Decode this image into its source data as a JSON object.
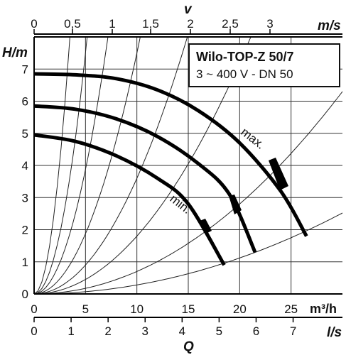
{
  "chart_data": {
    "type": "line",
    "title": "Wilo-TOP-Z 50/7",
    "subtitle": "3 ~ 400 V - DN 50",
    "x_primary": {
      "label": "Q",
      "unit": "m³/h",
      "range": [
        0,
        30
      ],
      "ticks": [
        "0",
        "5",
        "10",
        "15",
        "20",
        "25"
      ]
    },
    "x_secondary_bottom": {
      "unit": "l/s",
      "ticks": [
        "0",
        "1",
        "2",
        "3",
        "4",
        "5",
        "6",
        "7"
      ]
    },
    "x_secondary_top": {
      "label": "v",
      "unit": "m/s",
      "ticks": [
        "0",
        "0,5",
        "1",
        "1,5",
        "2",
        "2,5",
        "3"
      ]
    },
    "y": {
      "label": "H/m",
      "range": [
        0,
        8
      ],
      "ticks": [
        "0",
        "1",
        "2",
        "3",
        "4",
        "5",
        "6",
        "7"
      ]
    },
    "grid": true,
    "series": [
      {
        "name": "max.",
        "x": [
          0,
          4,
          8,
          12,
          16,
          20,
          24,
          26.5
        ],
        "y": [
          6.85,
          6.82,
          6.7,
          6.35,
          5.7,
          4.7,
          3.2,
          1.8
        ]
      },
      {
        "name": "",
        "x": [
          0,
          4,
          8,
          12,
          16,
          19,
          21.5
        ],
        "y": [
          5.85,
          5.75,
          5.45,
          4.9,
          4.05,
          3.1,
          1.3
        ]
      },
      {
        "name": "min.",
        "x": [
          0,
          4,
          8,
          12,
          15,
          18.5
        ],
        "y": [
          4.95,
          4.75,
          4.3,
          3.6,
          2.8,
          0.9
        ]
      }
    ],
    "system_curve_coefficients": [
      0.66,
      0.3,
      0.155,
      0.075,
      0.036,
      0.018,
      0.007,
      0.0028
    ]
  }
}
